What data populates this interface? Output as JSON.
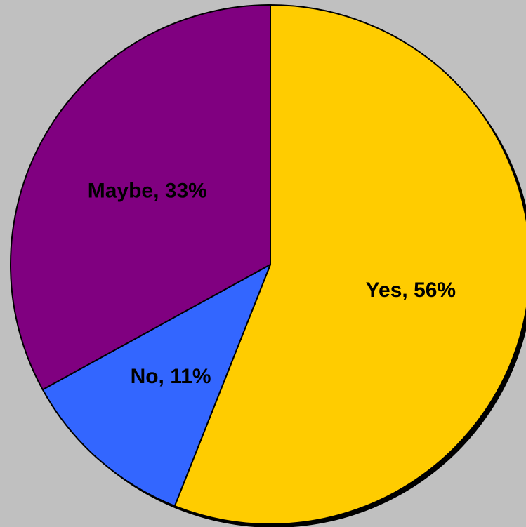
{
  "chart_data": {
    "type": "pie",
    "title": "",
    "slices": [
      {
        "label": "Yes",
        "value": 56,
        "color": "#ffcc00",
        "data_label": "Yes, 56%"
      },
      {
        "label": "No",
        "value": 11,
        "color": "#3366ff",
        "data_label": "No, 11%"
      },
      {
        "label": "Maybe",
        "value": 33,
        "color": "#800080",
        "data_label": "Maybe, 33%"
      }
    ],
    "start_angle": "12 o'clock",
    "direction": "clockwise",
    "background": "#c0c0c0",
    "shadow": true,
    "legend": "none"
  }
}
